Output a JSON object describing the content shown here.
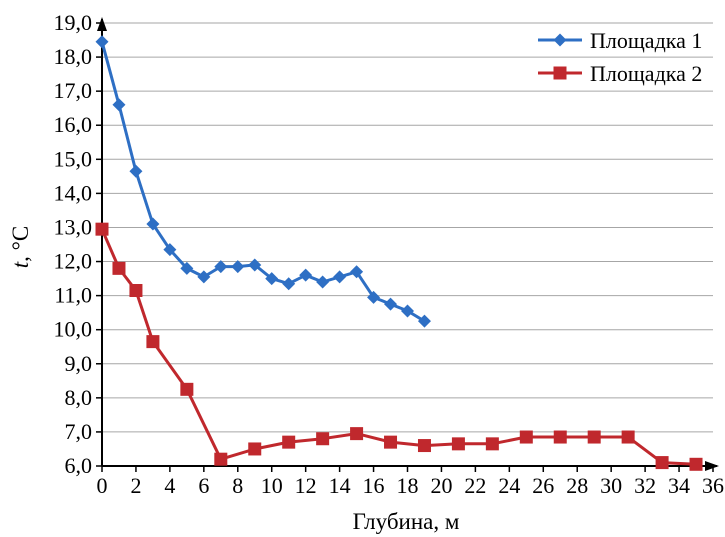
{
  "chart_data": {
    "type": "line",
    "xlabel": "Глубина, м",
    "ylabel_italic": "t",
    "ylabel_rest": ", °С",
    "xlim": [
      0,
      36
    ],
    "ylim": [
      6,
      19
    ],
    "xticks": [
      0,
      2,
      4,
      6,
      8,
      10,
      12,
      14,
      16,
      18,
      20,
      22,
      24,
      26,
      28,
      30,
      32,
      34,
      36
    ],
    "yticks": [
      6,
      7,
      8,
      9,
      10,
      11,
      12,
      13,
      14,
      15,
      16,
      17,
      18,
      19
    ],
    "ytick_labels": [
      "6,0",
      "7,0",
      "8,0",
      "9,0",
      "10,0",
      "11,0",
      "12,0",
      "13,0",
      "14,0",
      "15,0",
      "16,0",
      "17,0",
      "18,0",
      "19,0"
    ],
    "grid": "horizontal",
    "legend_position": "top-right",
    "series": [
      {
        "name": "Площадка 1",
        "color": "#2e6fc4",
        "marker": "diamond",
        "points": [
          [
            0,
            18.45
          ],
          [
            1,
            16.6
          ],
          [
            2,
            14.65
          ],
          [
            3,
            13.1
          ],
          [
            4,
            12.35
          ],
          [
            5,
            11.8
          ],
          [
            6,
            11.55
          ],
          [
            7,
            11.85
          ],
          [
            8,
            11.85
          ],
          [
            9,
            11.9
          ],
          [
            10,
            11.5
          ],
          [
            11,
            11.35
          ],
          [
            12,
            11.6
          ],
          [
            13,
            11.4
          ],
          [
            14,
            11.55
          ],
          [
            15,
            11.7
          ],
          [
            16,
            10.95
          ],
          [
            17,
            10.75
          ],
          [
            18,
            10.55
          ],
          [
            19,
            10.25
          ]
        ]
      },
      {
        "name": "Площадка 2",
        "color": "#c0282d",
        "marker": "square",
        "points": [
          [
            0,
            12.95
          ],
          [
            1,
            11.8
          ],
          [
            2,
            11.15
          ],
          [
            3,
            9.65
          ],
          [
            5,
            8.25
          ],
          [
            7,
            6.2
          ],
          [
            9,
            6.5
          ],
          [
            11,
            6.7
          ],
          [
            13,
            6.8
          ],
          [
            15,
            6.95
          ],
          [
            17,
            6.7
          ],
          [
            19,
            6.6
          ],
          [
            21,
            6.65
          ],
          [
            23,
            6.65
          ],
          [
            25,
            6.85
          ],
          [
            27,
            6.85
          ],
          [
            29,
            6.85
          ],
          [
            31,
            6.85
          ],
          [
            33,
            6.1
          ],
          [
            35,
            6.05
          ]
        ]
      }
    ]
  }
}
